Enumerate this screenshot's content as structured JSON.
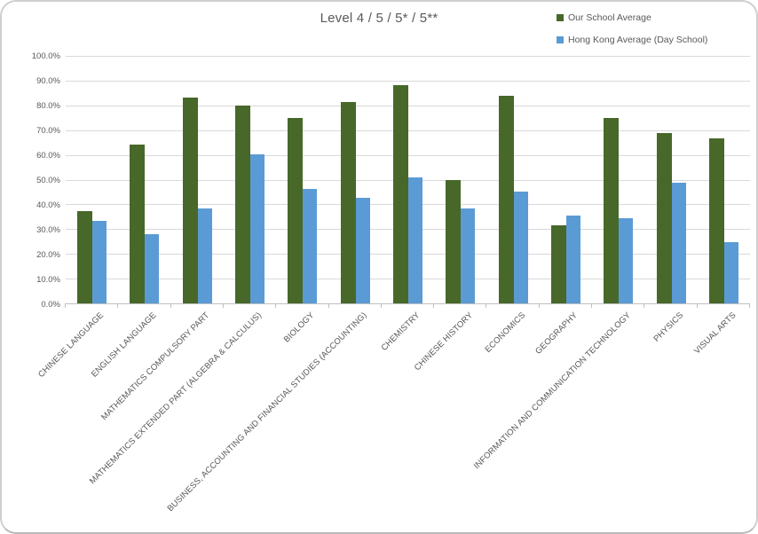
{
  "chart_data": {
    "type": "bar",
    "title": "Level 4 / 5 / 5* / 5**",
    "categories": [
      "CHINESE LANGUAGE",
      "ENGLISH LANGUAGE",
      "MATHEMATICS COMPULSORY PART",
      "MATHEMATICS EXTENDED PART (ALGEBRA & CALCULUS)",
      "BIOLOGY",
      "BUSINESS, ACCOUNTING AND FINANCIAL STUDIES (ACCOUNTING)",
      "CHEMISTRY",
      "CHINESE HISTORY",
      "ECONOMICS",
      "GEOGRAPHY",
      "INFORMATION AND COMMUNICATION TECHNOLOGY",
      "PHYSICS",
      "VISUAL ARTS"
    ],
    "series": [
      {
        "name": "Our School Average",
        "color": "#48682a",
        "values": [
          37.2,
          64.2,
          83.0,
          80.0,
          75.0,
          81.4,
          88.1,
          50.0,
          83.9,
          31.6,
          75.0,
          68.9,
          66.5
        ]
      },
      {
        "name": "Hong Kong Average (Day School)",
        "color": "#5b9bd5",
        "values": [
          33.2,
          28.0,
          38.5,
          60.1,
          46.3,
          42.7,
          51.0,
          38.4,
          45.0,
          35.4,
          34.3,
          48.7,
          24.7
        ]
      }
    ],
    "y_axis": {
      "min": 0,
      "max": 100,
      "step": 10,
      "tick_labels": [
        "0.0%",
        "10.0%",
        "20.0%",
        "30.0%",
        "40.0%",
        "50.0%",
        "60.0%",
        "70.0%",
        "80.0%",
        "90.0%",
        "100.0%"
      ]
    },
    "grid": true,
    "legend_position": "top-right",
    "colors": {
      "text": "#595959",
      "gridline": "#d9d9d9",
      "axis": "#bfbfbf",
      "card_border": "#cfcfcf"
    }
  }
}
